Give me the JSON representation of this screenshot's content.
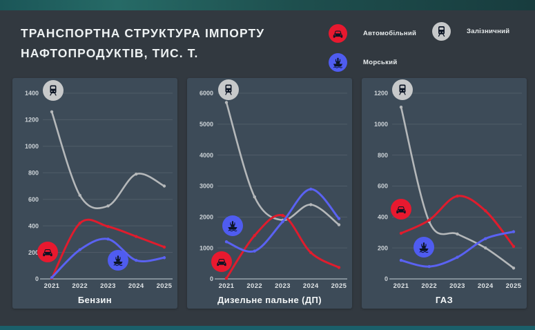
{
  "header": {
    "title_line1": "ТРАНСПОРТНА СТРУКТУРА ІМПОРТУ",
    "title_line2": "НАФТОПРОДУКТІВ, ТИС. Т."
  },
  "legend": {
    "items": [
      {
        "label": "Автомобільний",
        "icon": "car-icon",
        "key": "road",
        "color": "#e8192f"
      },
      {
        "label": "Залізничний",
        "icon": "train-icon",
        "key": "rail",
        "color": "#c7c9ca"
      },
      {
        "label": "Морський",
        "icon": "ship-icon",
        "key": "sea",
        "color": "#4f5cf0"
      }
    ]
  },
  "colors": {
    "line": {
      "rail": "#b5b8ba",
      "road": "#e01c2d",
      "sea": "#5a62f2"
    },
    "badge": {
      "rail": "#c7c9ca",
      "road": "#e8192f",
      "sea": "#4f5cf0"
    },
    "glyph": "#0b1424",
    "page_bg": "#323940",
    "panel_bg": "#3d4b58",
    "axis": "#9aa5ad",
    "top_band": "#1e524f",
    "footer_bar": "#1a5f6a"
  },
  "chart_data": [
    {
      "type": "line",
      "title": "Бензин",
      "categories": [
        "2021",
        "2022",
        "2023",
        "2024",
        "2025"
      ],
      "xlabel": "",
      "ylabel": "",
      "ylim": [
        0,
        1400
      ],
      "ytick": 200,
      "grid": true,
      "legend_position": "top-right-of-page",
      "series": [
        {
          "name": "Залізничний",
          "key": "rail",
          "values": [
            1260,
            630,
            550,
            790,
            700
          ]
        },
        {
          "name": "Автомобільний",
          "key": "road",
          "values": [
            5,
            420,
            395,
            320,
            240
          ]
        },
        {
          "name": "Морський",
          "key": "sea",
          "values": [
            10,
            220,
            300,
            140,
            160
          ]
        }
      ],
      "badges": [
        {
          "icon": "train-icon",
          "key": "rail",
          "x": 59,
          "y": 18
        },
        {
          "icon": "car-icon",
          "key": "road",
          "x": 51,
          "y": 252
        },
        {
          "icon": "ship-icon",
          "key": "sea",
          "x": 153,
          "y": 264
        }
      ]
    },
    {
      "type": "line",
      "title": "Дизельне пальне (ДП)",
      "categories": [
        "2021",
        "2022",
        "2023",
        "2024",
        "2025"
      ],
      "xlabel": "",
      "ylabel": "",
      "ylim": [
        0,
        6000
      ],
      "ytick": 1000,
      "grid": true,
      "legend_position": "top-right-of-page",
      "series": [
        {
          "name": "Залізничний",
          "key": "rail",
          "values": [
            5700,
            2650,
            1900,
            2400,
            1750
          ]
        },
        {
          "name": "Автомобільний",
          "key": "road",
          "values": [
            20,
            1400,
            2050,
            850,
            370
          ]
        },
        {
          "name": "Морський",
          "key": "sea",
          "values": [
            1200,
            900,
            1850,
            2900,
            1950
          ]
        }
      ],
      "badges": [
        {
          "icon": "train-icon",
          "key": "rail",
          "x": 60,
          "y": 17
        },
        {
          "icon": "ship-icon",
          "key": "sea",
          "x": 66,
          "y": 214
        },
        {
          "icon": "car-icon",
          "key": "road",
          "x": 50,
          "y": 266
        }
      ]
    },
    {
      "type": "line",
      "title": "ГАЗ",
      "categories": [
        "2021",
        "2022",
        "2023",
        "2024",
        "2025"
      ],
      "xlabel": "",
      "ylabel": "",
      "ylim": [
        0,
        1200
      ],
      "ytick": 200,
      "grid": true,
      "legend_position": "top-right-of-page",
      "series": [
        {
          "name": "Залізничний",
          "key": "rail",
          "values": [
            1110,
            370,
            290,
            200,
            70
          ]
        },
        {
          "name": "Автомобільний",
          "key": "road",
          "values": [
            295,
            380,
            535,
            440,
            210
          ]
        },
        {
          "name": "Морський",
          "key": "sea",
          "values": [
            120,
            80,
            140,
            260,
            305
          ]
        }
      ],
      "badges": [
        {
          "icon": "train-icon",
          "key": "rail",
          "x": 59,
          "y": 17
        },
        {
          "icon": "car-icon",
          "key": "road",
          "x": 57,
          "y": 190
        },
        {
          "icon": "ship-icon",
          "key": "sea",
          "x": 90,
          "y": 245
        }
      ]
    }
  ]
}
